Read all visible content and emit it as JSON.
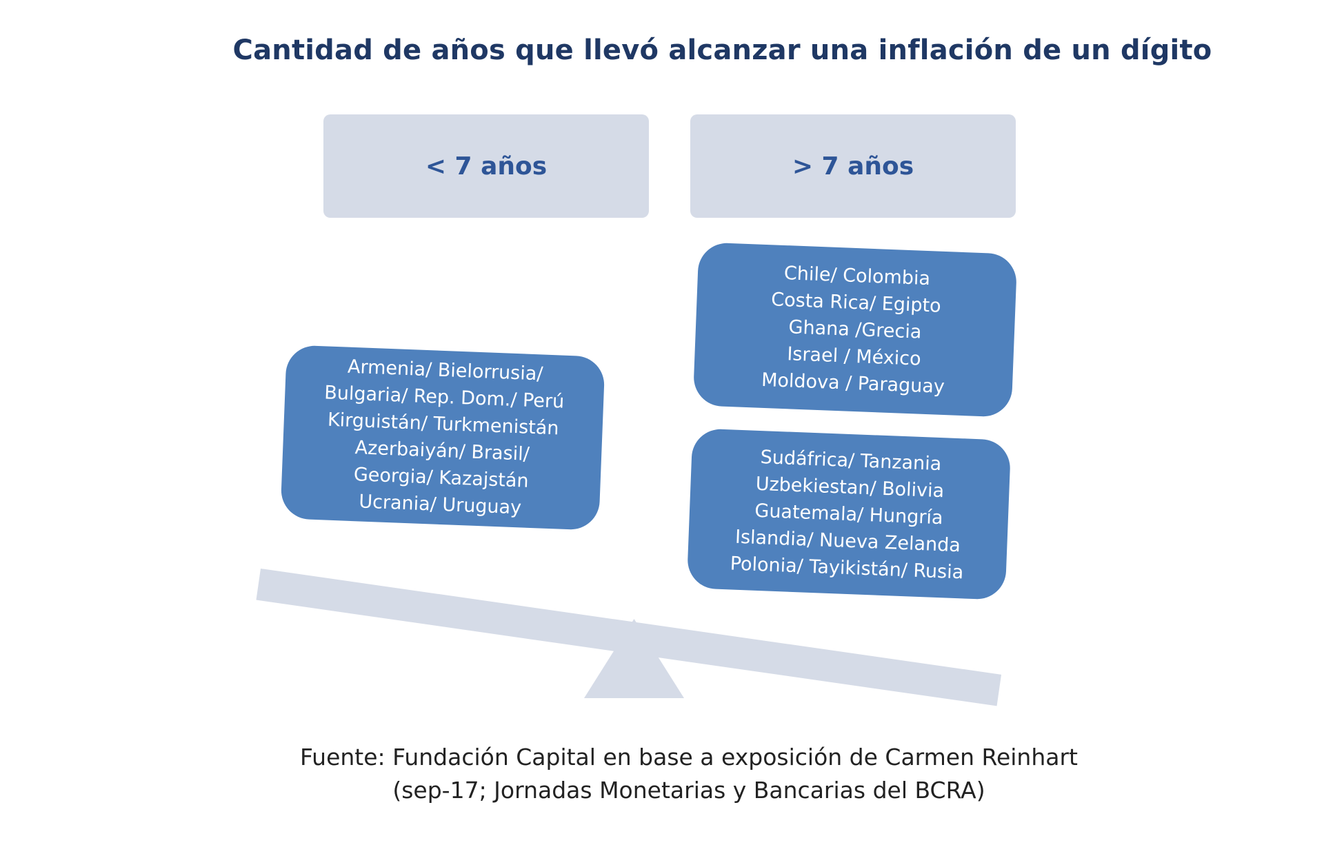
{
  "title": "Cantidad de años que llevó alcanzar una inflación de un dígito",
  "categories": {
    "left": "< 7 años",
    "right": "> 7 años"
  },
  "groups": {
    "left": [
      "Armenia/ Bielorrusia/",
      "Bulgaria/ Rep. Dom./ Perú",
      "Kirguistán/ Turkmenistán",
      "Azerbaiyán/ Brasil/",
      "Georgia/ Kazajstán",
      "Ucrania/ Uruguay"
    ],
    "right_top": [
      "Chile/ Colombia",
      "Costa Rica/ Egipto",
      "Ghana /Grecia",
      "Israel / México",
      "Moldova / Paraguay"
    ],
    "right_bottom": [
      "Sudáfrica/ Tanzania",
      "Uzbekiestan/ Bolivia",
      "Guatemala/ Hungría",
      "Islandia/ Nueva Zelanda",
      "Polonia/ Tayikistán/ Rusia"
    ]
  },
  "source": {
    "line1": "Fuente: Fundación Capital en base a exposición de Carmen Reinhart",
    "line2": "(sep-17; Jornadas Monetarias y Bancarias del BCRA)"
  },
  "colors": {
    "title": "#1f3864",
    "header_bg": "#d5dbe7",
    "header_text": "#2e5597",
    "group_bg": "#4f81bd",
    "group_text": "#ffffff",
    "scale": "#d5dbe7"
  }
}
